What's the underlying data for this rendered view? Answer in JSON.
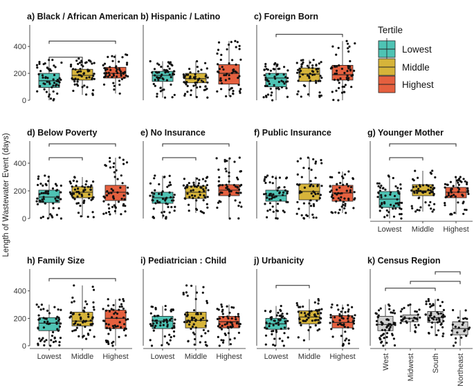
{
  "y_axis_label": "Length of Wastewater Event (days)",
  "y_ticks": [
    0,
    200,
    400
  ],
  "legend": {
    "title": "Tertile",
    "items": [
      {
        "label": "Lowest",
        "color": "#4ec3b4"
      },
      {
        "label": "Middle",
        "color": "#d6b43a"
      },
      {
        "label": "Highest",
        "color": "#e5603f"
      }
    ]
  },
  "chart_data": [
    {
      "type": "box",
      "title": "a) Black / African American",
      "categories": [
        "Lowest",
        "Middle",
        "Highest"
      ],
      "show_x_labels": false,
      "boxes": [
        {
          "q1": 95,
          "median": 145,
          "q3": 200,
          "lo": 0,
          "hi": 300
        },
        {
          "q1": 150,
          "median": 185,
          "q3": 230,
          "lo": 40,
          "hi": 310
        },
        {
          "q1": 165,
          "median": 200,
          "q3": 245,
          "lo": 50,
          "hi": 340
        }
      ],
      "n_points": [
        55,
        55,
        55
      ],
      "brackets": [
        [
          0,
          1,
          320
        ],
        [
          0,
          2,
          440
        ]
      ]
    },
    {
      "type": "box",
      "title": "b) Hispanic / Latino",
      "categories": [
        "Lowest",
        "Middle",
        "Highest"
      ],
      "show_x_labels": false,
      "boxes": [
        {
          "q1": 140,
          "median": 185,
          "q3": 215,
          "lo": 20,
          "hi": 290
        },
        {
          "q1": 130,
          "median": 160,
          "q3": 200,
          "lo": 20,
          "hi": 290
        },
        {
          "q1": 120,
          "median": 200,
          "q3": 265,
          "lo": 30,
          "hi": 440
        }
      ],
      "n_points": [
        55,
        55,
        55
      ],
      "brackets": []
    },
    {
      "type": "box",
      "title": "c) Foreign Born",
      "categories": [
        "Lowest",
        "Middle",
        "Highest"
      ],
      "show_x_labels": false,
      "boxes": [
        {
          "q1": 100,
          "median": 165,
          "q3": 200,
          "lo": 0,
          "hi": 275
        },
        {
          "q1": 140,
          "median": 195,
          "q3": 240,
          "lo": 25,
          "hi": 300
        },
        {
          "q1": 150,
          "median": 190,
          "q3": 260,
          "lo": 0,
          "hi": 440
        }
      ],
      "n_points": [
        55,
        55,
        55
      ],
      "brackets": [
        [
          0,
          2,
          490
        ]
      ]
    },
    {
      "type": "box",
      "title": "d) Below Poverty",
      "categories": [
        "Lowest",
        "Middle",
        "Highest"
      ],
      "show_x_labels": false,
      "boxes": [
        {
          "q1": 115,
          "median": 155,
          "q3": 205,
          "lo": 0,
          "hi": 310
        },
        {
          "q1": 150,
          "median": 190,
          "q3": 230,
          "lo": 10,
          "hi": 300
        },
        {
          "q1": 130,
          "median": 190,
          "q3": 240,
          "lo": 30,
          "hi": 440
        }
      ],
      "n_points": [
        55,
        55,
        55
      ],
      "brackets": [
        [
          0,
          1,
          440
        ],
        [
          0,
          2,
          540
        ]
      ]
    },
    {
      "type": "box",
      "title": "e) No Insurance",
      "categories": [
        "Lowest",
        "Middle",
        "Highest"
      ],
      "show_x_labels": false,
      "boxes": [
        {
          "q1": 110,
          "median": 150,
          "q3": 190,
          "lo": 0,
          "hi": 310
        },
        {
          "q1": 145,
          "median": 190,
          "q3": 235,
          "lo": 40,
          "hi": 300
        },
        {
          "q1": 165,
          "median": 205,
          "q3": 245,
          "lo": 0,
          "hi": 440
        }
      ],
      "n_points": [
        55,
        55,
        55
      ],
      "brackets": [
        [
          0,
          1,
          440
        ],
        [
          0,
          2,
          540
        ]
      ]
    },
    {
      "type": "box",
      "title": "f) Public Insurance",
      "categories": [
        "Lowest",
        "Middle",
        "Highest"
      ],
      "show_x_labels": false,
      "boxes": [
        {
          "q1": 125,
          "median": 165,
          "q3": 205,
          "lo": 0,
          "hi": 310
        },
        {
          "q1": 135,
          "median": 195,
          "q3": 250,
          "lo": 0,
          "hi": 440
        },
        {
          "q1": 125,
          "median": 185,
          "q3": 240,
          "lo": 40,
          "hi": 340
        }
      ],
      "n_points": [
        55,
        55,
        55
      ],
      "brackets": []
    },
    {
      "type": "box",
      "title": "g) Younger Mother",
      "categories": [
        "Lowest",
        "Middle",
        "Highest"
      ],
      "show_x_labels": true,
      "boxes": [
        {
          "q1": 80,
          "median": 140,
          "q3": 195,
          "lo": 0,
          "hi": 310
        },
        {
          "q1": 165,
          "median": 200,
          "q3": 245,
          "lo": 50,
          "hi": 345
        },
        {
          "q1": 150,
          "median": 190,
          "q3": 225,
          "lo": 30,
          "hi": 300
        }
      ],
      "n_points": [
        55,
        55,
        55
      ],
      "brackets": [
        [
          0,
          1,
          440
        ],
        [
          0,
          2,
          540
        ]
      ]
    },
    {
      "type": "box",
      "title": "h) Family Size",
      "categories": [
        "Lowest",
        "Middle",
        "Highest"
      ],
      "show_x_labels": true,
      "boxes": [
        {
          "q1": 110,
          "median": 165,
          "q3": 205,
          "lo": 0,
          "hi": 300
        },
        {
          "q1": 145,
          "median": 180,
          "q3": 245,
          "lo": 50,
          "hi": 440
        },
        {
          "q1": 125,
          "median": 200,
          "q3": 260,
          "lo": 0,
          "hi": 340
        }
      ],
      "n_points": [
        55,
        55,
        55
      ],
      "brackets": [
        [
          0,
          2,
          490
        ]
      ]
    },
    {
      "type": "box",
      "title": "i) Pediatrician : Child",
      "categories": [
        "Lowest",
        "Middle",
        "Highest"
      ],
      "show_x_labels": true,
      "boxes": [
        {
          "q1": 125,
          "median": 180,
          "q3": 215,
          "lo": 0,
          "hi": 290
        },
        {
          "q1": 130,
          "median": 185,
          "q3": 245,
          "lo": 0,
          "hi": 440
        },
        {
          "q1": 130,
          "median": 175,
          "q3": 215,
          "lo": 0,
          "hi": 300
        }
      ],
      "n_points": [
        55,
        55,
        55
      ],
      "brackets": []
    },
    {
      "type": "box",
      "title": "j) Urbanicity",
      "categories": [
        "Lowest",
        "Middle",
        "Highest"
      ],
      "show_x_labels": true,
      "boxes": [
        {
          "q1": 120,
          "median": 160,
          "q3": 200,
          "lo": 0,
          "hi": 290
        },
        {
          "q1": 160,
          "median": 210,
          "q3": 255,
          "lo": 40,
          "hi": 340
        },
        {
          "q1": 130,
          "median": 170,
          "q3": 220,
          "lo": 0,
          "hi": 300
        }
      ],
      "n_points": [
        55,
        55,
        55
      ],
      "brackets": [
        [
          0,
          1,
          440
        ]
      ]
    },
    {
      "type": "box",
      "title": "k) Census Region",
      "categories": [
        "West",
        "Midwest",
        "South",
        "Northeast"
      ],
      "show_x_labels": true,
      "rotate_labels": true,
      "grey": true,
      "boxes": [
        {
          "q1": 110,
          "median": 155,
          "q3": 215,
          "lo": 0,
          "hi": 300
        },
        {
          "q1": 175,
          "median": 200,
          "q3": 225,
          "lo": 100,
          "hi": 300
        },
        {
          "q1": 170,
          "median": 205,
          "q3": 250,
          "lo": 70,
          "hi": 340
        },
        {
          "q1": 80,
          "median": 125,
          "q3": 175,
          "lo": 0,
          "hi": 260
        }
      ],
      "n_points": [
        55,
        30,
        50,
        25
      ],
      "brackets": [
        [
          0,
          2,
          420
        ],
        [
          1,
          3,
          470
        ],
        [
          2,
          3,
          540
        ]
      ]
    }
  ]
}
